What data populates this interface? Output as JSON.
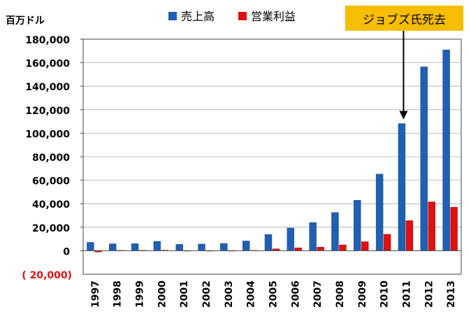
{
  "chart_data": {
    "type": "bar",
    "unit_label": "百万ドル",
    "categories": [
      "1997",
      "1998",
      "1999",
      "2000",
      "2001",
      "2002",
      "2003",
      "2004",
      "2005",
      "2006",
      "2007",
      "2008",
      "2009",
      "2010",
      "2011",
      "2012",
      "2013"
    ],
    "series": [
      {
        "name": "売上高",
        "color": "#1F5FB4",
        "values": [
          7100,
          5900,
          6100,
          8000,
          5400,
          5700,
          6200,
          8300,
          13900,
          19300,
          24000,
          32500,
          42900,
          65200,
          108200,
          156500,
          170900
        ]
      },
      {
        "name": "営業利益",
        "color": "#E01010",
        "values": [
          -1100,
          300,
          400,
          500,
          -300,
          0,
          0,
          300,
          1600,
          2500,
          3100,
          5000,
          7700,
          14000,
          25600,
          41600,
          37100
        ]
      }
    ],
    "y_ticks": [
      {
        "value": 180000,
        "label": "180,000"
      },
      {
        "value": 160000,
        "label": "160,000"
      },
      {
        "value": 140000,
        "label": "140,000"
      },
      {
        "value": 120000,
        "label": "120,000"
      },
      {
        "value": 100000,
        "label": "100,000"
      },
      {
        "value": 80000,
        "label": "80,000"
      },
      {
        "value": 60000,
        "label": "60,000"
      },
      {
        "value": 40000,
        "label": "40,000"
      },
      {
        "value": 20000,
        "label": "20,000"
      },
      {
        "value": 0,
        "label": "0"
      },
      {
        "value": -20000,
        "label": "( 20,000)"
      }
    ],
    "ylim": [
      -20000,
      180000
    ],
    "grid": true,
    "legend": "top-center",
    "annotation": {
      "text": "ジョブズ氏死去",
      "category": "2011"
    },
    "negative_label_color": "#E01010",
    "background": "#FFFFFF",
    "grid_color": "#AAAAAA"
  }
}
